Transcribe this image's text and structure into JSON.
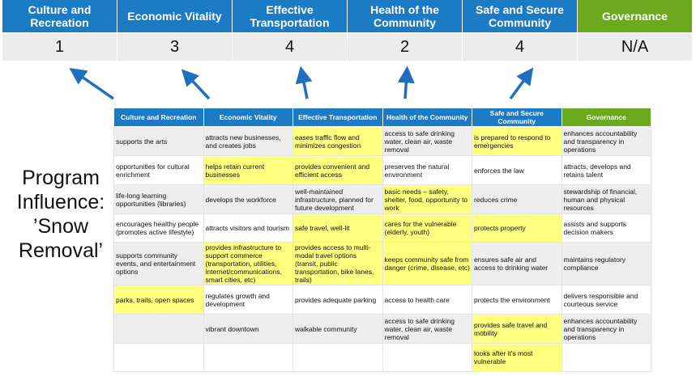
{
  "top_header": {
    "columns": [
      {
        "label": "Culture and Recreation",
        "score": "1",
        "color": "#1b7bc4"
      },
      {
        "label": "Economic Vitality",
        "score": "3",
        "color": "#1b7bc4"
      },
      {
        "label": "Effective Transportation",
        "score": "4",
        "color": "#1b7bc4"
      },
      {
        "label": "Health of the Community",
        "score": "2",
        "color": "#1b7bc4"
      },
      {
        "label": "Safe and Secure Community",
        "score": "4",
        "color": "#1b7bc4"
      },
      {
        "label": "Governance",
        "score": "N/A",
        "color": "#6aaa1c"
      }
    ]
  },
  "program_label": "Program Influence: ’Snow Removal’",
  "table": {
    "headers": [
      "Culture and Recreation",
      "Economic Vitality",
      "Effective Transportation",
      "Health of the Community",
      "Safe and Secure Community",
      "Governance"
    ],
    "highlight_color": "#ffff80",
    "rows": [
      {
        "cells": [
          "supports the arts",
          "attracts new businesses, and creates jobs",
          "eases traffic flow and minimizes congestion",
          "access to safe drinking water, clean air, waste removal",
          "is prepared to respond to emergencies",
          "enhances accountability and transparency in operations"
        ],
        "highlighted": [
          false,
          false,
          true,
          false,
          true,
          false
        ]
      },
      {
        "cells": [
          "opportunities for cultural enrichment",
          "helps retain current businesses",
          "provides convenient and efficient access",
          "preserves the natural environment",
          "enforces the law",
          "attracts, develops and retains talent"
        ],
        "highlighted": [
          false,
          true,
          true,
          false,
          false,
          false
        ]
      },
      {
        "cells": [
          "life-long learning opportunities (libraries)",
          "develops the workforce",
          "well-maintained infrastructure, planned for future development",
          "basic needs – safety, shelter, food, opportunity to work",
          "reduces crime",
          "stewardship of financial, human and physical resources"
        ],
        "highlighted": [
          false,
          false,
          false,
          true,
          false,
          false
        ]
      },
      {
        "cells": [
          "encourages healthy people (promotes active lifestyle)",
          "attracts visitors and tourism",
          "safe travel, well-lit",
          "cares for the vulnerable (elderly, youth)",
          "protects property",
          "assists and supports decision makers"
        ],
        "highlighted": [
          false,
          false,
          true,
          true,
          true,
          false
        ]
      },
      {
        "cells": [
          "supports community events, and entertainment options",
          "provides infrastructure to support commerce (transportation, utilities, internet/communications, smart cities, etc)",
          "provides access to multi-modal travel options (transit, public transportation, bike lanes, trails)",
          "keeps community safe from danger (crime, disease, etc)",
          "ensures safe air and access to drinking water",
          "maintains regulatory compliance"
        ],
        "highlighted": [
          false,
          true,
          true,
          true,
          false,
          false
        ]
      },
      {
        "cells": [
          "parks, trails, open spaces",
          "regulates growth and development",
          "provides adequate parking",
          "access to health care",
          "protects the environment",
          "delivers responsible and courteous service"
        ],
        "highlighted": [
          true,
          false,
          false,
          false,
          false,
          false
        ]
      },
      {
        "cells": [
          "",
          "vibrant downtown",
          "walkable community",
          "access to safe drinking water, clean air, waste removal",
          "provides safe travel and mobility",
          "enhances accountability and transparency in operations"
        ],
        "highlighted": [
          false,
          false,
          false,
          false,
          true,
          false
        ]
      },
      {
        "cells": [
          "",
          "",
          "",
          "",
          "looks after it's most vulnerable",
          ""
        ],
        "highlighted": [
          false,
          false,
          false,
          false,
          true,
          false
        ]
      }
    ]
  }
}
